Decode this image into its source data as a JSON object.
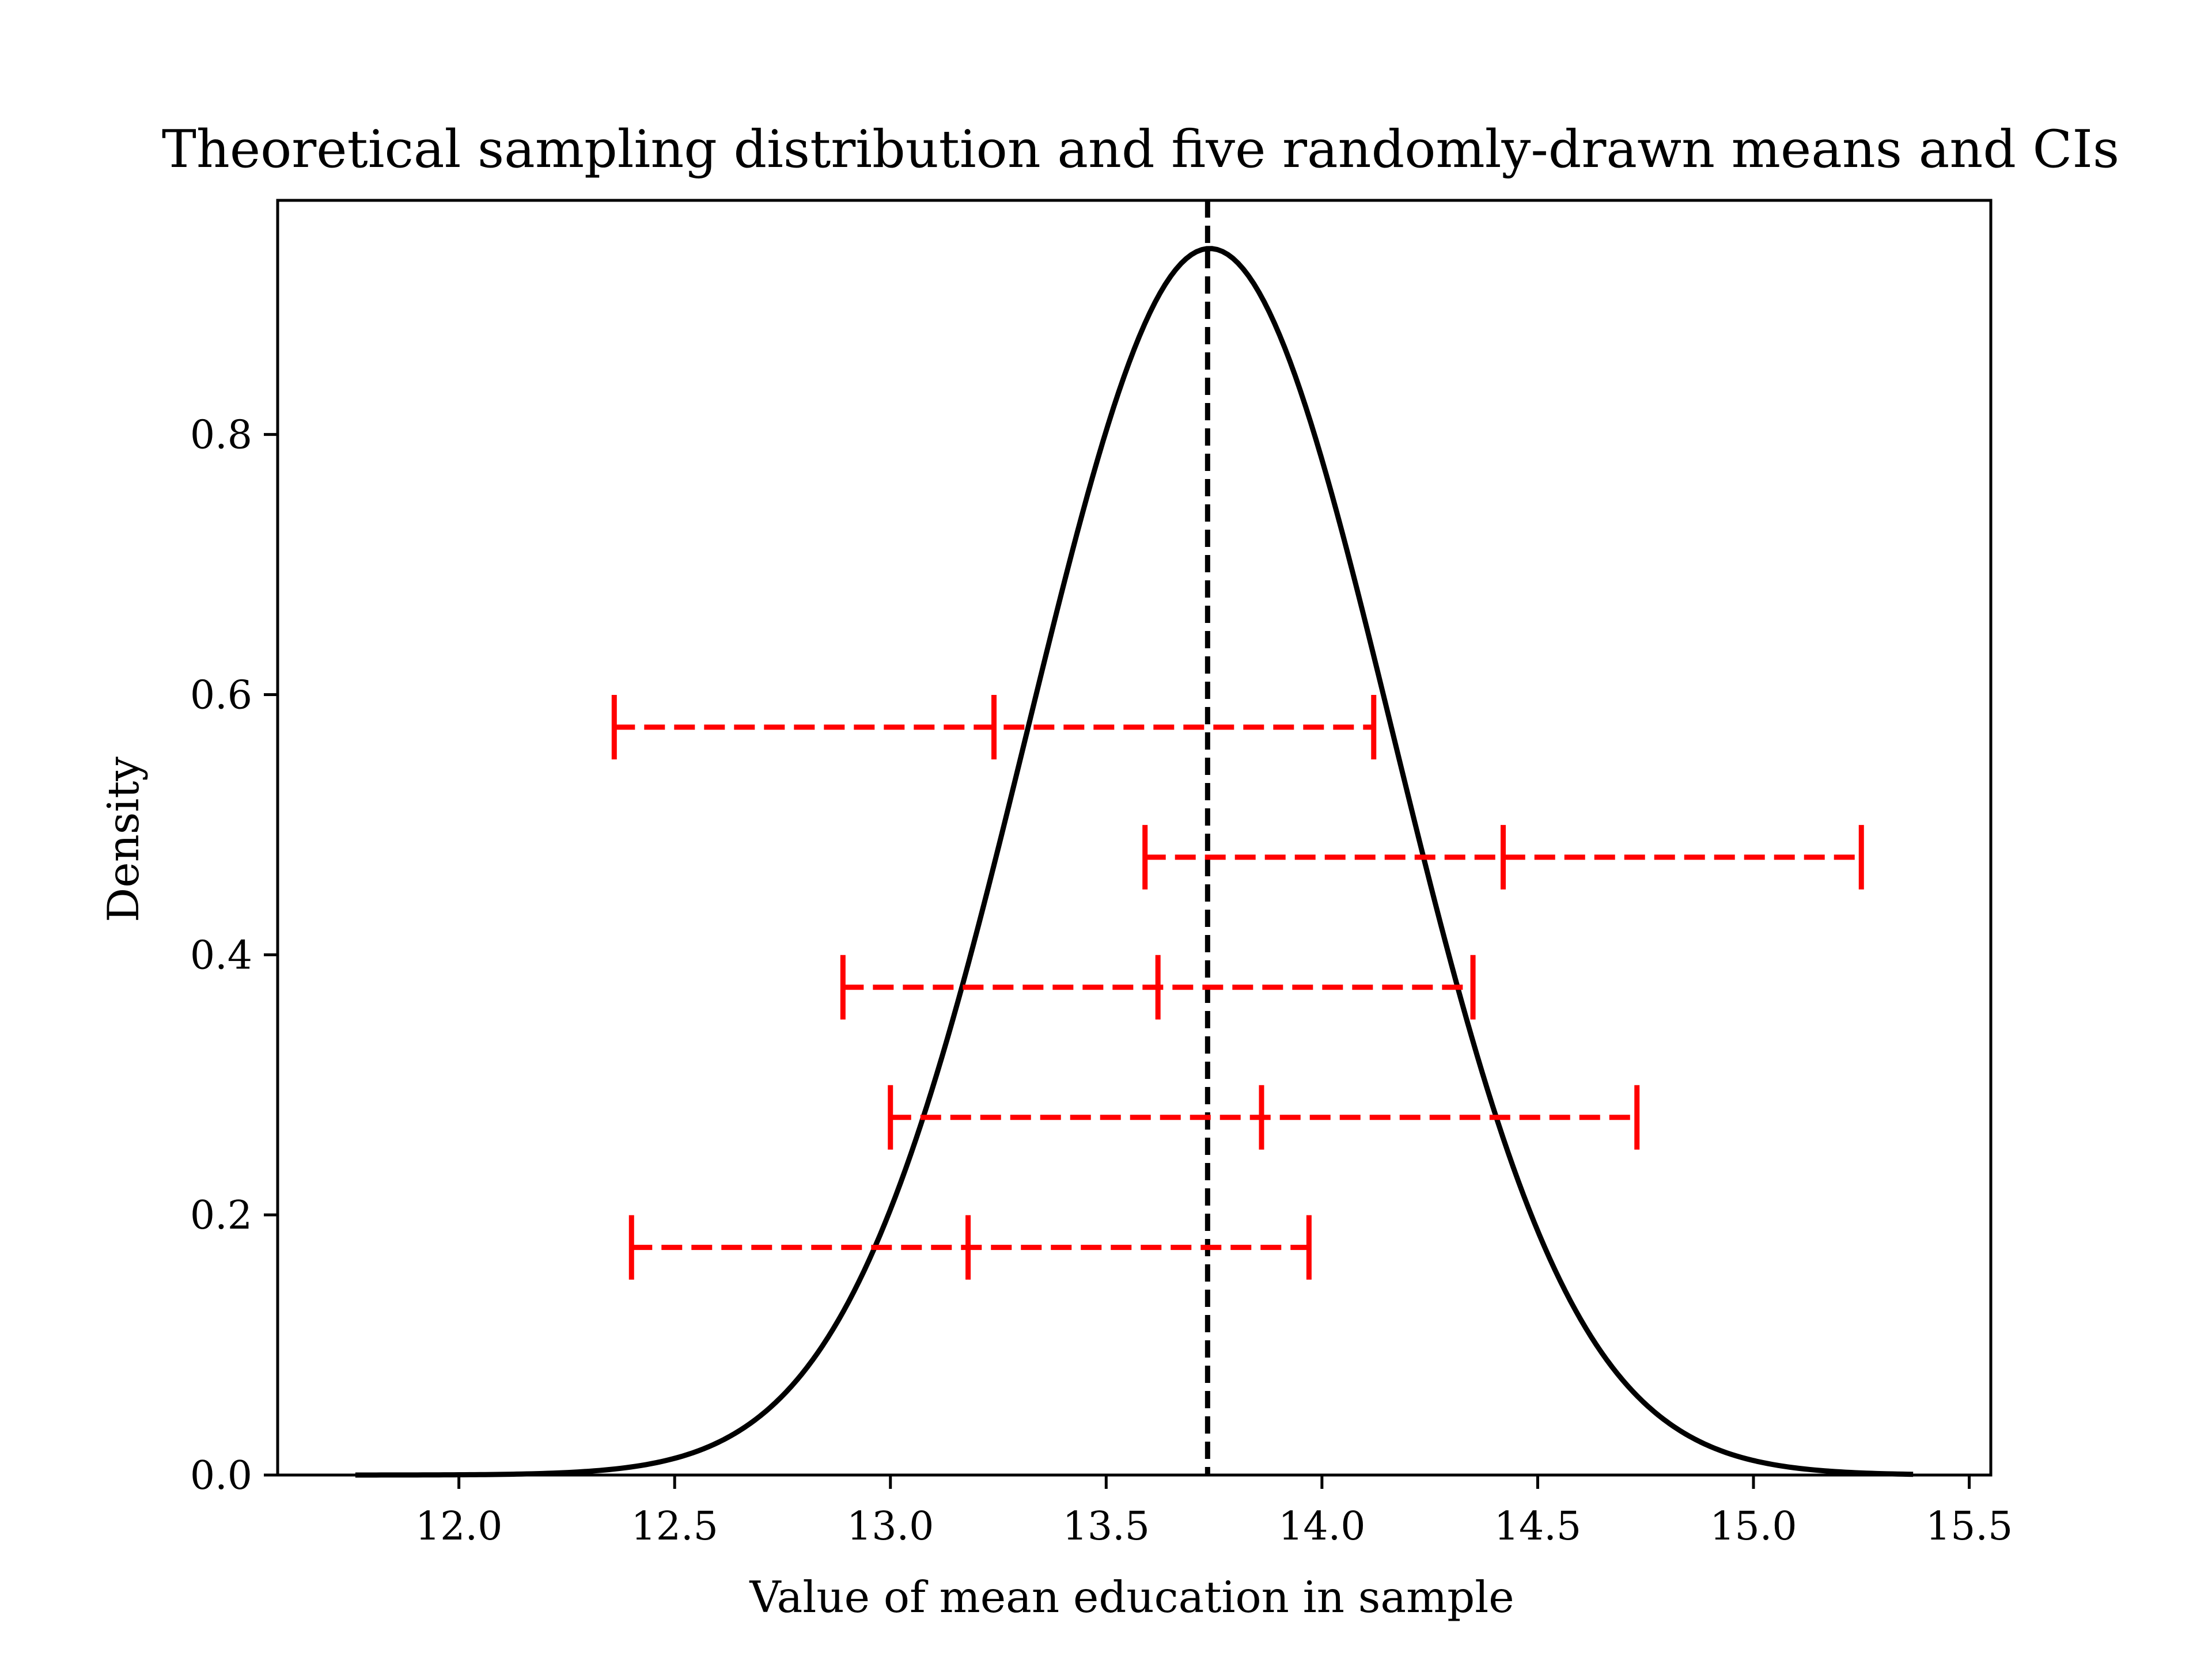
{
  "chart_data": {
    "type": "line",
    "title": "Theoretical sampling distribution and five randomly-drawn means and CIs",
    "xlabel": "Value of mean education in sample",
    "ylabel": "Density",
    "xlim": [
      11.58,
      15.55
    ],
    "ylim": [
      0.0,
      0.98
    ],
    "x_ticks": [
      12.0,
      12.5,
      13.0,
      13.5,
      14.0,
      14.5,
      15.0,
      15.5
    ],
    "x_tick_labels": [
      "12.0",
      "12.5",
      "13.0",
      "13.5",
      "14.0",
      "14.5",
      "15.0",
      "15.5"
    ],
    "y_ticks": [
      0.0,
      0.2,
      0.4,
      0.6,
      0.8
    ],
    "y_tick_labels": [
      "0.0",
      "0.2",
      "0.4",
      "0.6",
      "0.8"
    ],
    "grid": false,
    "density_curve": {
      "mean": 13.74,
      "sd": 0.423,
      "x_range": [
        11.76,
        15.37
      ],
      "peak": 0.943,
      "color": "#000000"
    },
    "population_mean_line": {
      "x": 13.735,
      "style": "dashed",
      "color": "#000000"
    },
    "confidence_intervals": {
      "color": "#ff0000",
      "style": "dashed",
      "items": [
        {
          "y": 0.575,
          "lower": 12.36,
          "mean": 13.24,
          "upper": 14.12
        },
        {
          "y": 0.475,
          "lower": 13.59,
          "mean": 14.42,
          "upper": 15.25
        },
        {
          "y": 0.375,
          "lower": 12.89,
          "mean": 13.62,
          "upper": 14.35
        },
        {
          "y": 0.275,
          "lower": 13.0,
          "mean": 13.86,
          "upper": 14.73
        },
        {
          "y": 0.175,
          "lower": 12.4,
          "mean": 13.18,
          "upper": 13.97
        }
      ]
    }
  }
}
